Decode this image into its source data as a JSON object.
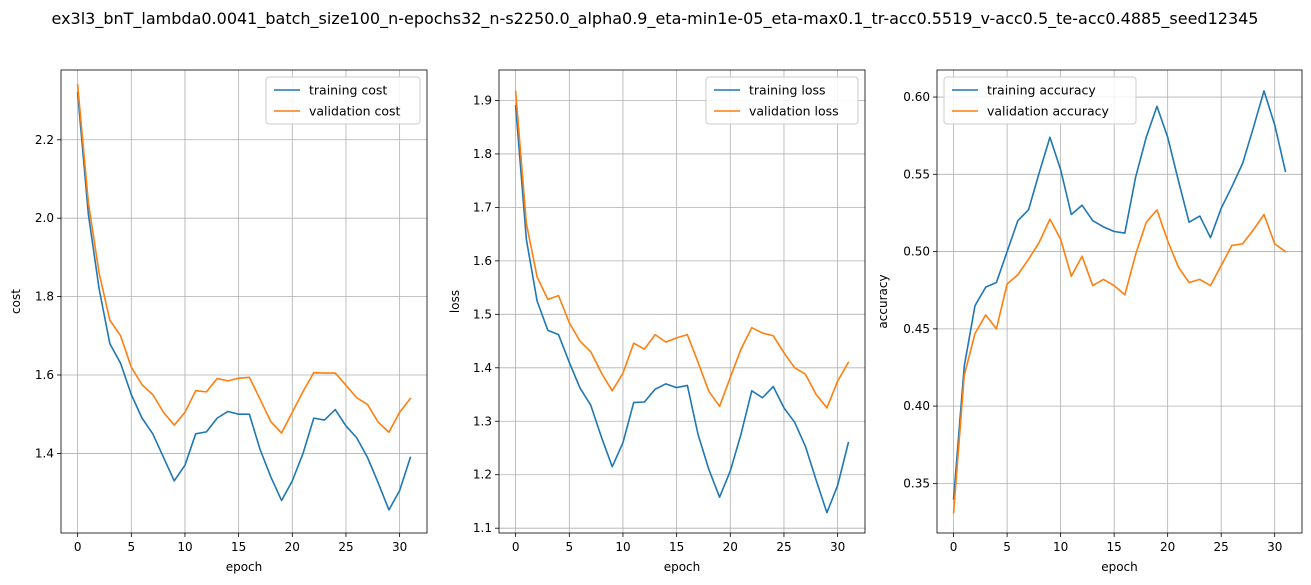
{
  "figure": {
    "suptitle": "ex3l3_bnT_lambda0.0041_batch_size100_n-epochs32_n-s2250.0_alpha0.9_eta-min1e-05_eta-max0.1_tr-acc0.5519_v-acc0.5_te-acc0.4885_seed12345"
  },
  "colors": {
    "series1": "#1f77b4",
    "series2": "#ff7f0e",
    "grid": "#b0b0b0"
  },
  "chart_data": [
    {
      "type": "line",
      "xlabel": "epoch",
      "ylabel": "cost",
      "xlim": [
        -1.55,
        32.55
      ],
      "ylim": [
        1.197,
        2.378
      ],
      "xticks": [
        0,
        5,
        10,
        15,
        20,
        25,
        30
      ],
      "yticks": [
        1.4,
        1.6,
        1.8,
        2.0,
        2.2
      ],
      "yticklabels": [
        "1.4",
        "1.6",
        "1.8",
        "2.0",
        "2.2"
      ],
      "grid": true,
      "legend": "upper right",
      "x": [
        0,
        1,
        2,
        3,
        4,
        5,
        6,
        7,
        8,
        9,
        10,
        11,
        12,
        13,
        14,
        15,
        16,
        17,
        18,
        19,
        20,
        21,
        22,
        23,
        24,
        25,
        26,
        27,
        28,
        29,
        30,
        31
      ],
      "series": [
        {
          "name": "training cost",
          "values": [
            2.32,
            2.01,
            1.82,
            1.68,
            1.63,
            1.55,
            1.49,
            1.45,
            1.39,
            1.33,
            1.37,
            1.45,
            1.455,
            1.49,
            1.507,
            1.5,
            1.5,
            1.41,
            1.34,
            1.28,
            1.33,
            1.4,
            1.49,
            1.485,
            1.512,
            1.47,
            1.44,
            1.39,
            1.325,
            1.256,
            1.305,
            1.39
          ]
        },
        {
          "name": "validation cost",
          "values": [
            2.34,
            2.04,
            1.86,
            1.74,
            1.7,
            1.62,
            1.575,
            1.55,
            1.505,
            1.472,
            1.505,
            1.56,
            1.557,
            1.591,
            1.585,
            1.592,
            1.594,
            1.538,
            1.481,
            1.452,
            1.505,
            1.558,
            1.606,
            1.605,
            1.605,
            1.574,
            1.542,
            1.525,
            1.48,
            1.454,
            1.505,
            1.54
          ]
        }
      ]
    },
    {
      "type": "line",
      "xlabel": "epoch",
      "ylabel": "loss",
      "xlim": [
        -1.55,
        32.55
      ],
      "ylim": [
        1.091,
        1.957
      ],
      "xticks": [
        0,
        5,
        10,
        15,
        20,
        25,
        30
      ],
      "yticks": [
        1.1,
        1.2,
        1.3,
        1.4,
        1.5,
        1.6,
        1.7,
        1.8,
        1.9
      ],
      "yticklabels": [
        "1.1",
        "1.2",
        "1.3",
        "1.4",
        "1.5",
        "1.6",
        "1.7",
        "1.8",
        "1.9"
      ],
      "grid": true,
      "legend": "upper right",
      "x": [
        0,
        1,
        2,
        3,
        4,
        5,
        6,
        7,
        8,
        9,
        10,
        11,
        12,
        13,
        14,
        15,
        16,
        17,
        18,
        19,
        20,
        21,
        22,
        23,
        24,
        25,
        26,
        27,
        28,
        29,
        30,
        31
      ],
      "series": [
        {
          "name": "training loss",
          "values": [
            1.89,
            1.64,
            1.525,
            1.47,
            1.462,
            1.41,
            1.362,
            1.33,
            1.27,
            1.215,
            1.26,
            1.335,
            1.336,
            1.36,
            1.37,
            1.363,
            1.367,
            1.275,
            1.21,
            1.158,
            1.207,
            1.276,
            1.357,
            1.344,
            1.365,
            1.325,
            1.298,
            1.253,
            1.19,
            1.129,
            1.18,
            1.26
          ]
        },
        {
          "name": "validation loss",
          "values": [
            1.917,
            1.67,
            1.57,
            1.528,
            1.535,
            1.484,
            1.45,
            1.43,
            1.39,
            1.357,
            1.39,
            1.446,
            1.435,
            1.462,
            1.448,
            1.456,
            1.462,
            1.41,
            1.356,
            1.328,
            1.382,
            1.435,
            1.475,
            1.465,
            1.46,
            1.428,
            1.4,
            1.388,
            1.35,
            1.325,
            1.375,
            1.41
          ]
        }
      ]
    },
    {
      "type": "line",
      "xlabel": "epoch",
      "ylabel": "accuracy",
      "xlim": [
        -1.55,
        32.55
      ],
      "ylim": [
        0.3179,
        0.6175
      ],
      "xticks": [
        0,
        5,
        10,
        15,
        20,
        25,
        30
      ],
      "yticks": [
        0.35,
        0.4,
        0.45,
        0.5,
        0.55,
        0.6
      ],
      "yticklabels": [
        "0.35",
        "0.40",
        "0.45",
        "0.50",
        "0.55",
        "0.60"
      ],
      "grid": true,
      "legend": "upper left",
      "x": [
        0,
        1,
        2,
        3,
        4,
        5,
        6,
        7,
        8,
        9,
        10,
        11,
        12,
        13,
        14,
        15,
        16,
        17,
        18,
        19,
        20,
        21,
        22,
        23,
        24,
        25,
        26,
        27,
        28,
        29,
        30,
        31
      ],
      "series": [
        {
          "name": "training accuracy",
          "values": [
            0.34,
            0.426,
            0.465,
            0.477,
            0.48,
            0.5,
            0.52,
            0.527,
            0.551,
            0.574,
            0.553,
            0.524,
            0.53,
            0.52,
            0.516,
            0.513,
            0.512,
            0.548,
            0.574,
            0.594,
            0.574,
            0.546,
            0.519,
            0.523,
            0.509,
            0.528,
            0.542,
            0.557,
            0.58,
            0.604,
            0.582,
            0.552
          ]
        },
        {
          "name": "validation accuracy",
          "values": [
            0.331,
            0.42,
            0.447,
            0.459,
            0.45,
            0.479,
            0.485,
            0.495,
            0.506,
            0.521,
            0.508,
            0.484,
            0.497,
            0.478,
            0.482,
            0.478,
            0.472,
            0.498,
            0.519,
            0.527,
            0.507,
            0.49,
            0.48,
            0.482,
            0.478,
            0.491,
            0.504,
            0.505,
            0.514,
            0.524,
            0.505,
            0.5
          ]
        }
      ]
    }
  ]
}
